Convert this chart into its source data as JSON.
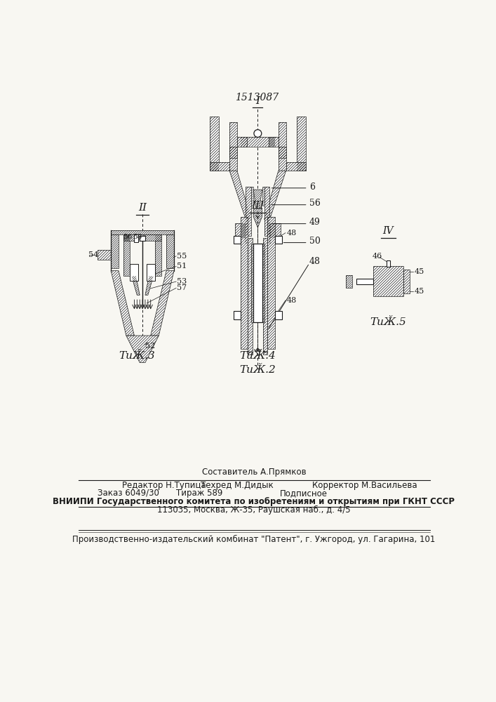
{
  "patent_number": "1513087",
  "bg_color": "#f8f7f2",
  "lc": "#1a1a1a",
  "fig_captions": [
    "ΤиӁ.2",
    "ΤиӁ.3",
    "ΤиӁ.4",
    "ΤиӁ.5"
  ],
  "footer_lines": [
    "Составитель А.Прямков",
    "Редактор Н.Тупица",
    "Техред М.Дидык",
    "Корректор М.Васильева",
    "Заказ 6049/30",
    "Тираж 589",
    "Подписное",
    "ВНИИПИ Государственного комитета по изобретениям и открытиям при ГКНТ СССР",
    "113035, Москва, Ж-35, Раушская наб., д. 4/5",
    "Производственно-издательский комбинат \"Патент\", г. Ужгород, ул. Гагарина, 101"
  ]
}
